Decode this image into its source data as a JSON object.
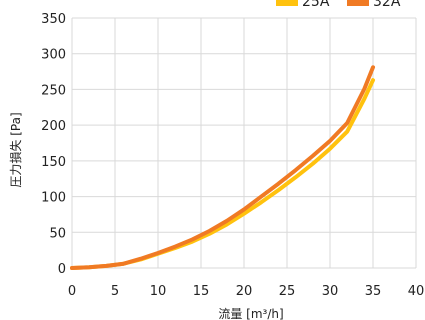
{
  "chart_data": {
    "type": "line",
    "title": "",
    "xlabel": "流量 [m³/h]",
    "ylabel": "圧力損失 [Pa]",
    "xlim": [
      0,
      40
    ],
    "ylim": [
      0,
      350
    ],
    "xticks": [
      0,
      5,
      10,
      15,
      20,
      25,
      30,
      35,
      40
    ],
    "yticks": [
      0,
      50,
      100,
      150,
      200,
      250,
      300,
      350
    ],
    "grid": true,
    "legend_position": "top-right",
    "series": [
      {
        "name": "25A",
        "color": "#FFC20E",
        "x": [
          0,
          2,
          4,
          6,
          8,
          10,
          12,
          14,
          16,
          18,
          20,
          22,
          24,
          26,
          28,
          30,
          32,
          34,
          35
        ],
        "y": [
          0,
          1,
          3,
          6,
          12,
          20,
          28,
          37,
          48,
          61,
          76,
          92,
          109,
          127,
          146,
          167,
          191,
          237,
          263
        ]
      },
      {
        "name": "32A",
        "color": "#F07A24",
        "x": [
          0,
          2,
          4,
          6,
          8,
          10,
          12,
          14,
          16,
          18,
          20,
          22,
          24,
          26,
          28,
          30,
          32,
          34,
          35
        ],
        "y": [
          0,
          1,
          3,
          6,
          13,
          21,
          30,
          40,
          52,
          66,
          82,
          100,
          118,
          137,
          157,
          178,
          203,
          251,
          281
        ]
      }
    ]
  }
}
